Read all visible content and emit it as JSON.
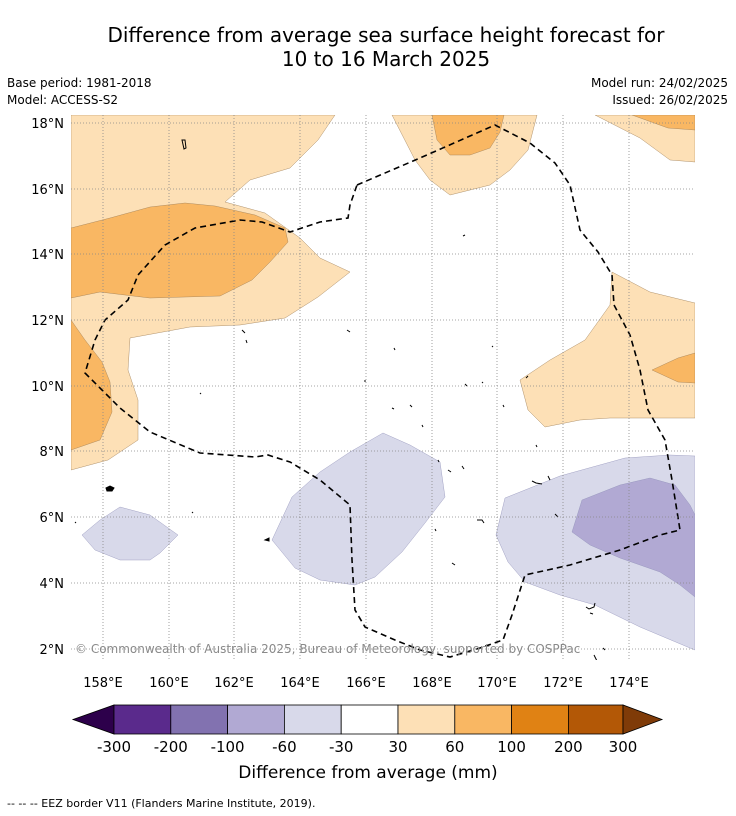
{
  "title": {
    "line1": "Difference from average sea surface height forecast for",
    "line2": "10 to 16 March 2025"
  },
  "meta": {
    "base_period": "Base period: 1981-2018",
    "model": "Model: ACCESS-S2",
    "model_run": "Model run: 24/02/2025",
    "issued": "Issued: 26/02/2025"
  },
  "map": {
    "lat_labels": [
      "18°N",
      "16°N",
      "14°N",
      "12°N",
      "10°N",
      "8°N",
      "6°N",
      "4°N",
      "2°N"
    ],
    "lon_labels": [
      "158°E",
      "160°E",
      "162°E",
      "164°E",
      "166°E",
      "168°E",
      "170°E",
      "172°E",
      "174°E"
    ],
    "watermark": "© Commonwealth of Australia 2025, Bureau of Meteorology, supported by COSPPac",
    "colors": {
      "pos30": "#fde0b6",
      "pos60": "#f9b763",
      "neg30": "#d8d9ea",
      "neg60": "#b1a9d3"
    }
  },
  "colorbar": {
    "ticks": [
      "-300",
      "-200",
      "-100",
      "-60",
      "-30",
      "30",
      "60",
      "100",
      "200",
      "300"
    ],
    "colors": [
      "#2d004b",
      "#5a2a8c",
      "#8272b0",
      "#b1a9d3",
      "#d8d9ea",
      "#ffffff",
      "#fde0b6",
      "#f9b763",
      "#e08214",
      "#b35806",
      "#7f3b08"
    ],
    "label": "Difference from average (mm)"
  },
  "footer": {
    "legend_text": "-- -- -- EEZ border V11 (Flanders Marine Institute, 2019)."
  }
}
